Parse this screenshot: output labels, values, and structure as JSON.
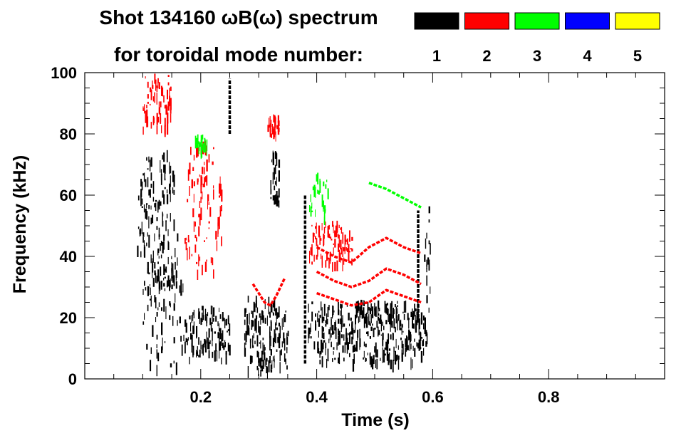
{
  "chart_data": {
    "type": "heatmap",
    "title_line1": "Shot 134160 ωB(ω) spectrum",
    "title_line2": "for toroidal mode number:",
    "xlabel": "Time (s)",
    "ylabel": "Frequency (kHz)",
    "xlim": [
      0.0,
      1.0
    ],
    "ylim": [
      0,
      100
    ],
    "xticks": [
      0.2,
      0.4,
      0.6,
      0.8
    ],
    "xtick_labels": [
      "0.2",
      "0.4",
      "0.6",
      "0.8"
    ],
    "yticks": [
      0,
      20,
      40,
      60,
      80,
      100
    ],
    "ytick_labels": [
      "0",
      "20",
      "40",
      "60",
      "80",
      "100"
    ],
    "grid": false,
    "legend_position": "top-right",
    "legend": [
      {
        "label": "1",
        "color": "#000000"
      },
      {
        "label": "2",
        "color": "#ff0000"
      },
      {
        "label": "3",
        "color": "#00ff00"
      },
      {
        "label": "4",
        "color": "#0000ff"
      },
      {
        "label": "5",
        "color": "#ffff00"
      }
    ],
    "series": [
      {
        "mode": "1",
        "color": "#000000",
        "regions": [
          {
            "t0": 0.09,
            "t1": 0.16,
            "f0": 30,
            "f1": 75,
            "density": 0.85
          },
          {
            "t0": 0.1,
            "t1": 0.17,
            "f0": 2,
            "f1": 40,
            "density": 0.45
          },
          {
            "t0": 0.17,
            "t1": 0.25,
            "f0": 6,
            "f1": 24,
            "density": 0.55
          },
          {
            "t0": 0.275,
            "t1": 0.35,
            "f0": 3,
            "f1": 28,
            "density": 0.75
          },
          {
            "t0": 0.32,
            "t1": 0.335,
            "f0": 55,
            "f1": 75,
            "density": 0.8
          },
          {
            "t0": 0.385,
            "t1": 0.59,
            "f0": 6,
            "f1": 26,
            "density": 0.75
          },
          {
            "t0": 0.585,
            "t1": 0.595,
            "f0": 20,
            "f1": 57,
            "density": 0.7
          }
        ],
        "lines": [
          {
            "t": [
              0.25,
              0.25
            ],
            "f": [
              80,
              98
            ]
          },
          {
            "t": [
              0.38,
              0.38
            ],
            "f": [
              5,
              60
            ]
          },
          {
            "t": [
              0.575,
              0.575
            ],
            "f": [
              20,
              55
            ]
          }
        ]
      },
      {
        "mode": "2",
        "color": "#ff0000",
        "regions": [
          {
            "t0": 0.1,
            "t1": 0.15,
            "f0": 82,
            "f1": 100,
            "density": 0.5
          },
          {
            "t0": 0.17,
            "t1": 0.235,
            "f0": 35,
            "f1": 78,
            "density": 0.55
          },
          {
            "t0": 0.315,
            "t1": 0.335,
            "f0": 80,
            "f1": 87,
            "density": 0.6
          },
          {
            "t0": 0.385,
            "t1": 0.46,
            "f0": 38,
            "f1": 52,
            "density": 0.4
          }
        ],
        "lines": [
          {
            "t": [
              0.29,
              0.3,
              0.31,
              0.32,
              0.33,
              0.345
            ],
            "f": [
              31,
              28,
              25,
              24,
              27,
              33
            ]
          },
          {
            "t": [
              0.4,
              0.43,
              0.46,
              0.49,
              0.52,
              0.55,
              0.58
            ],
            "f": [
              43,
              40,
              38,
              43,
              46,
              43,
              41
            ]
          },
          {
            "t": [
              0.4,
              0.43,
              0.46,
              0.49,
              0.52,
              0.55,
              0.58
            ],
            "f": [
              35,
              32,
              30,
              32,
              36,
              34,
              31
            ]
          },
          {
            "t": [
              0.4,
              0.43,
              0.46,
              0.49,
              0.52,
              0.55,
              0.58
            ],
            "f": [
              28,
              26,
              24,
              25,
              29,
              27,
              25
            ]
          }
        ]
      },
      {
        "mode": "3",
        "color": "#00ff00",
        "regions": [
          {
            "t0": 0.19,
            "t1": 0.21,
            "f0": 75,
            "f1": 80,
            "density": 0.4
          },
          {
            "t0": 0.385,
            "t1": 0.42,
            "f0": 52,
            "f1": 68,
            "density": 0.3
          }
        ],
        "lines": [
          {
            "t": [
              0.49,
              0.52,
              0.55,
              0.58
            ],
            "f": [
              64,
              62,
              59,
              56
            ]
          }
        ]
      },
      {
        "mode": "4",
        "color": "#0000ff",
        "regions": [],
        "lines": []
      },
      {
        "mode": "5",
        "color": "#ffff00",
        "regions": [],
        "lines": []
      }
    ]
  }
}
